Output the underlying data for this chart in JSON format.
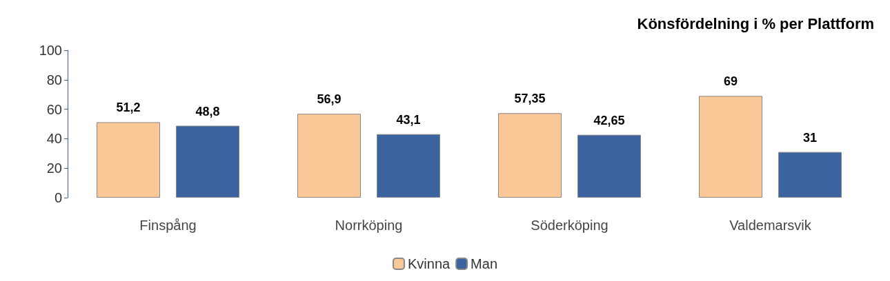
{
  "chart_data": {
    "type": "bar",
    "title": "Könsfördelning i % per Plattform",
    "categories": [
      "Finspång",
      "Norrköping",
      "Söderköping",
      "Valdemarsvik"
    ],
    "series": [
      {
        "name": "Kvinna",
        "color": "#f9c896",
        "values": [
          51.2,
          56.9,
          57.35,
          69
        ],
        "value_labels": [
          "51,2",
          "56,9",
          "57,35",
          "69"
        ]
      },
      {
        "name": "Man",
        "color": "#3b64a0",
        "values": [
          48.8,
          43.1,
          42.65,
          31
        ],
        "value_labels": [
          "48,8",
          "43,1",
          "42,65",
          "31"
        ]
      }
    ],
    "ylim": [
      0,
      100
    ],
    "yticks": [
      0,
      20,
      40,
      60,
      80,
      100
    ],
    "grid": false,
    "legend": "bottom"
  }
}
